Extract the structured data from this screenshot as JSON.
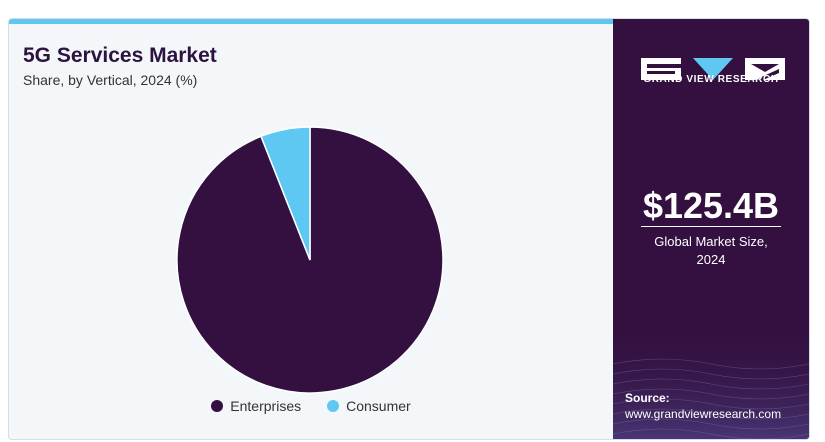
{
  "chart_data": {
    "type": "pie",
    "title": "5G Services Market",
    "subtitle": "Share, by Vertical, 2024 (%)",
    "categories": [
      "Enterprises",
      "Consumer"
    ],
    "values": [
      94,
      6
    ],
    "colors": [
      "#331040",
      "#5ec8f2"
    ],
    "legend_position": "bottom-center",
    "start_angle_deg": 0,
    "direction": "clockwise"
  },
  "brand": {
    "name": "GRAND VIEW RESEARCH",
    "logo_icon": "gvr-logo-icon"
  },
  "highlight": {
    "value": "$125.4B",
    "caption_line1": "Global Market Size,",
    "caption_line2": "2024"
  },
  "source": {
    "label": "Source:",
    "url": "www.grandviewresearch.com"
  },
  "theme": {
    "accent": "#5fc6ef",
    "panel": "#331040",
    "background": "#f3f7fa"
  }
}
